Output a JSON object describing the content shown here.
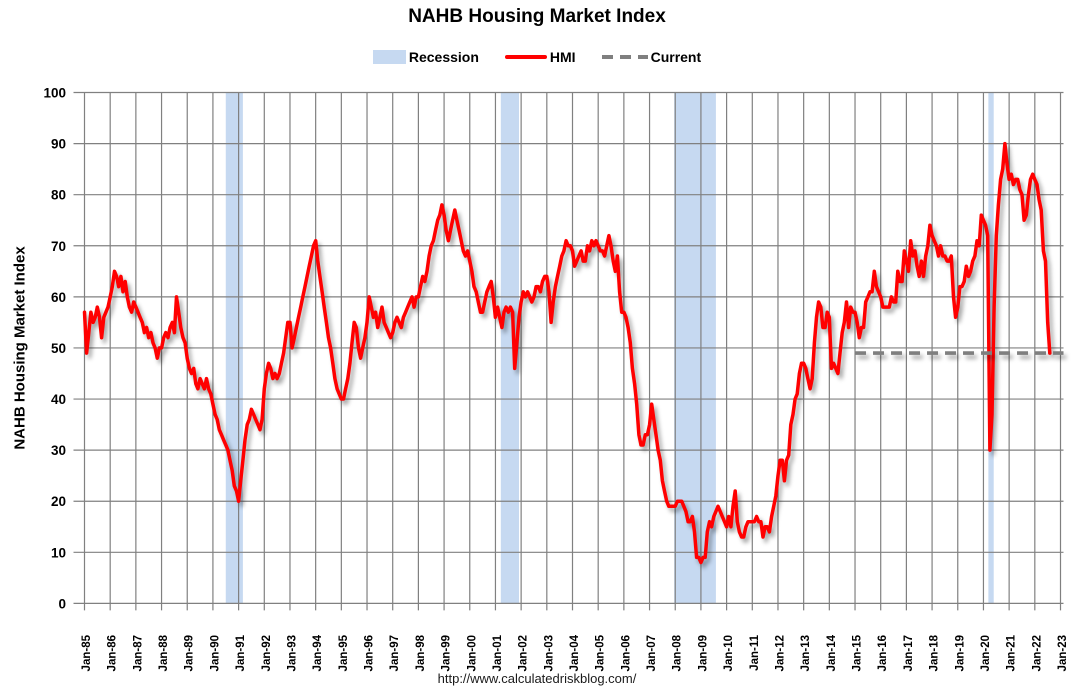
{
  "chart": {
    "title": "NAHB Housing Market Index",
    "y_axis_title": "NAHB Housing Market Index",
    "footer": "http://www.calculatedriskblog.com/",
    "legend": [
      {
        "label": "Recession",
        "type": "band",
        "color": "#C6D9F1"
      },
      {
        "label": "HMI",
        "type": "line",
        "color": "#FF0000"
      },
      {
        "label": "Current",
        "type": "dashed",
        "color": "#7F7F7F"
      }
    ]
  },
  "chart_data": {
    "type": "line",
    "title": "NAHB Housing Market Index",
    "xlabel": "",
    "ylabel": "NAHB Housing Market Index",
    "ylim": [
      0,
      100
    ],
    "grid": true,
    "legend_position": "top",
    "grid_color": "#808080",
    "recession_color": "#C6D9F1",
    "y_ticks": [
      0,
      10,
      20,
      30,
      40,
      50,
      60,
      70,
      80,
      90,
      100
    ],
    "x_tick_labels": [
      "Jan-85",
      "Jan-86",
      "Jan-87",
      "Jan-88",
      "Jan-89",
      "Jan-90",
      "Jan-91",
      "Jan-92",
      "Jan-93",
      "Jan-94",
      "Jan-95",
      "Jan-96",
      "Jan-97",
      "Jan-98",
      "Jan-99",
      "Jan-00",
      "Jan-01",
      "Jan-02",
      "Jan-03",
      "Jan-04",
      "Jan-05",
      "Jan-06",
      "Jan-07",
      "Jan-08",
      "Jan-09",
      "Jan-10",
      "Jan-11",
      "Jan-12",
      "Jan-13",
      "Jan-14",
      "Jan-15",
      "Jan-16",
      "Jan-17",
      "Jan-18",
      "Jan-19",
      "Jan-20",
      "Jan-21",
      "Jan-22",
      "Jan-23"
    ],
    "start_month": "Jan-1985",
    "frequency": "monthly",
    "series": [
      {
        "name": "HMI",
        "color": "#FF0000",
        "values": [
          57,
          49,
          53,
          57,
          55,
          56,
          58,
          56,
          52,
          56,
          57,
          58,
          60,
          62,
          65,
          64,
          62,
          64,
          61,
          63,
          60,
          58,
          57,
          59,
          58,
          57,
          56,
          55,
          53,
          54,
          52,
          53,
          51,
          50,
          48,
          50,
          50,
          52,
          53,
          52,
          54,
          55,
          53,
          60,
          57,
          54,
          52,
          51,
          48,
          46,
          45,
          46,
          43,
          42,
          44,
          43,
          42,
          44,
          42,
          41,
          39,
          37,
          36,
          34,
          33,
          32,
          31,
          30,
          28,
          26,
          23,
          22,
          20,
          24,
          28,
          32,
          35,
          36,
          38,
          37,
          36,
          35,
          34,
          36,
          42,
          45,
          47,
          46,
          44,
          45,
          44,
          45,
          47,
          49,
          52,
          55,
          55,
          50,
          52,
          54,
          56,
          58,
          60,
          62,
          64,
          66,
          68,
          70,
          71,
          67,
          64,
          61,
          58,
          55,
          52,
          50,
          47,
          44,
          42,
          41,
          40,
          40,
          42,
          44,
          47,
          51,
          55,
          54,
          50,
          48,
          50,
          52,
          55,
          60,
          58,
          56,
          57,
          54,
          56,
          58,
          55,
          54,
          53,
          52,
          53,
          55,
          56,
          55,
          54,
          56,
          57,
          58,
          59,
          60,
          58,
          60,
          60,
          62,
          64,
          63,
          65,
          68,
          70,
          71,
          73,
          75,
          76,
          78,
          76,
          73,
          71,
          73,
          75,
          77,
          75,
          73,
          71,
          69,
          68,
          69,
          67,
          65,
          62,
          61,
          59,
          57,
          57,
          59,
          61,
          62,
          63,
          60,
          56,
          58,
          56,
          54,
          57,
          58,
          57,
          58,
          57,
          46,
          51,
          56,
          59,
          61,
          60,
          61,
          60,
          59,
          60,
          62,
          62,
          61,
          63,
          64,
          64,
          61,
          55,
          59,
          62,
          64,
          66,
          68,
          69,
          71,
          70,
          70,
          69,
          66,
          67,
          68,
          69,
          67,
          67,
          70,
          69,
          71,
          70,
          71,
          70,
          69,
          69,
          68,
          70,
          72,
          70,
          67,
          65,
          68,
          61,
          57,
          57,
          56,
          54,
          51,
          46,
          43,
          39,
          33,
          31,
          31,
          33,
          33,
          35,
          39,
          36,
          33,
          30,
          28,
          24,
          22,
          20,
          19,
          19,
          19,
          19,
          20,
          20,
          20,
          19,
          18,
          16,
          16,
          17,
          14,
          9,
          9,
          8,
          9,
          9,
          14,
          16,
          15,
          17,
          18,
          19,
          18,
          17,
          16,
          15,
          17,
          15,
          19,
          22,
          16,
          14,
          13,
          13,
          15,
          16,
          16,
          16,
          16,
          17,
          16,
          16,
          13,
          15,
          15,
          14,
          17,
          19,
          21,
          25,
          28,
          28,
          24,
          28,
          29,
          35,
          37,
          40,
          41,
          45,
          47,
          47,
          46,
          44,
          42,
          44,
          51,
          56,
          59,
          58,
          54,
          54,
          57,
          56,
          46,
          47,
          46,
          45,
          49,
          53,
          55,
          59,
          54,
          58,
          57,
          57,
          55,
          52,
          54,
          54,
          59,
          60,
          61,
          61,
          65,
          62,
          61,
          60,
          58,
          58,
          58,
          58,
          60,
          59,
          59,
          65,
          63,
          63,
          69,
          67,
          65,
          71,
          68,
          69,
          66,
          64,
          67,
          64,
          68,
          70,
          74,
          72,
          71,
          70,
          68,
          70,
          68,
          68,
          67,
          67,
          68,
          60,
          56,
          58,
          62,
          62,
          63,
          66,
          64,
          65,
          67,
          68,
          71,
          70,
          76,
          75,
          74,
          72,
          30,
          37,
          58,
          72,
          78,
          83,
          85,
          90,
          86,
          83,
          84,
          82,
          83,
          83,
          81,
          80,
          75,
          76,
          80,
          83,
          84,
          83,
          82,
          79,
          77,
          69,
          67,
          55,
          49
        ]
      }
    ],
    "current_line": {
      "label": "Current",
      "value": 49,
      "from_month_index": 360,
      "to_month_index": 456,
      "color": "#7F7F7F",
      "style": "dashed"
    },
    "recessions": [
      {
        "from": "Jul-1990",
        "to": "Mar-1991",
        "from_index": 66,
        "to_index": 74
      },
      {
        "from": "Mar-2001",
        "to": "Nov-2001",
        "from_index": 194.5,
        "to_index": 203
      },
      {
        "from": "Dec-2007",
        "to": "Jun-2009",
        "from_index": 275.5,
        "to_index": 295
      },
      {
        "from": "Feb-2020",
        "to": "Apr-2020",
        "from_index": 422.3,
        "to_index": 424.8
      }
    ]
  }
}
